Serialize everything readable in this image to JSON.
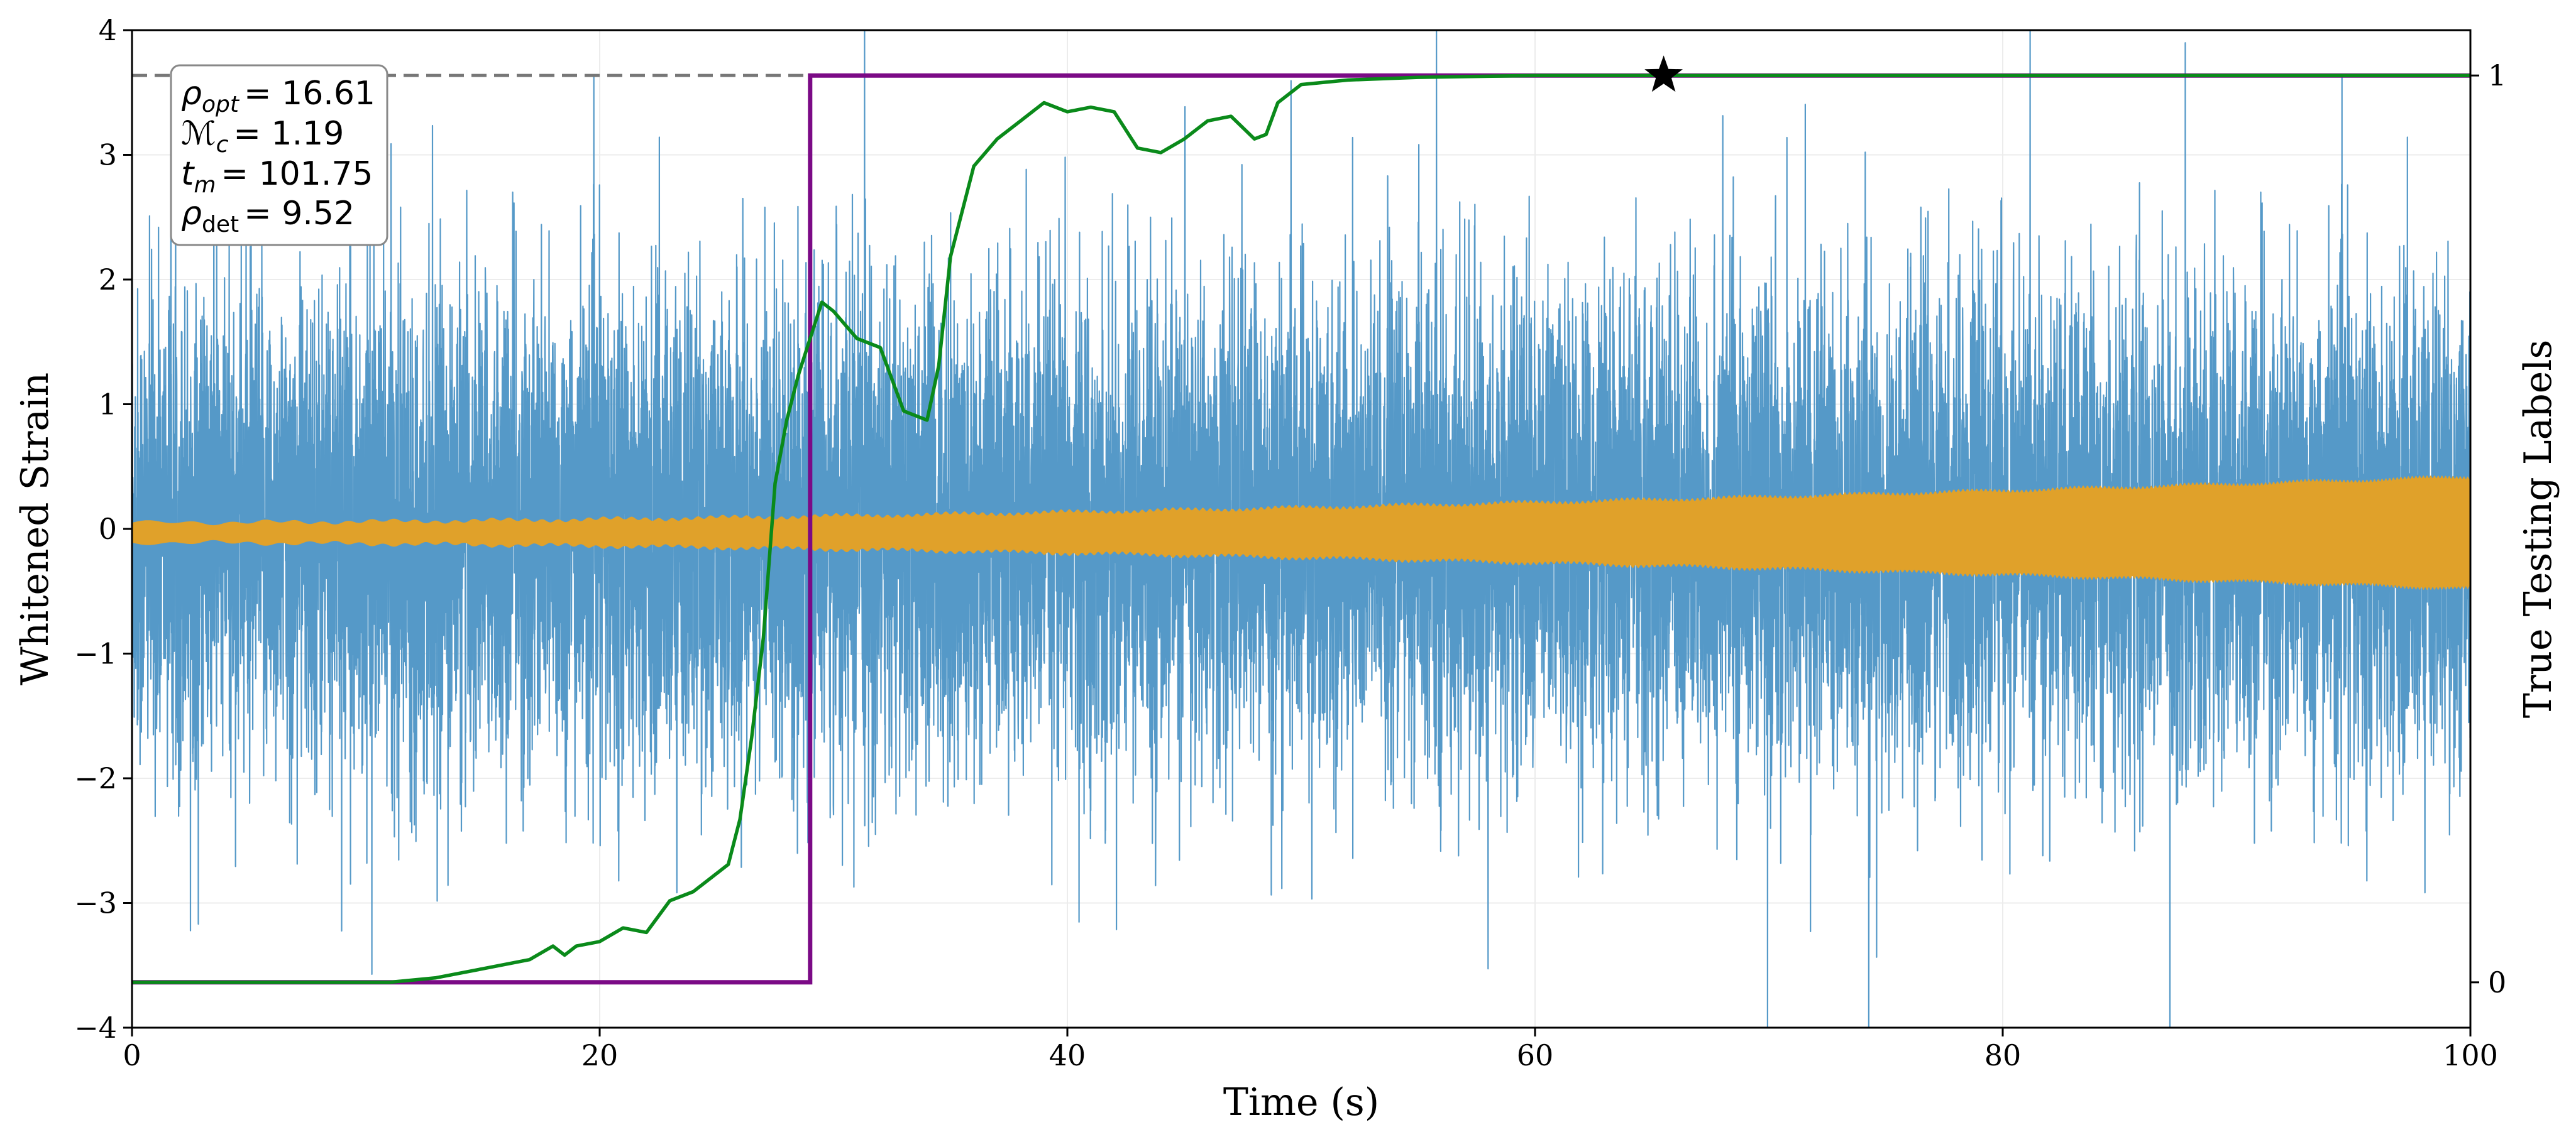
{
  "chart_data": {
    "type": "line",
    "xlabel": "Time (s)",
    "ylabel": "Whitened Strain",
    "y2label": "True Testing Labels",
    "xlim": [
      0,
      100
    ],
    "ylim": [
      -4,
      4
    ],
    "y2lim": [
      -0.05,
      1.05
    ],
    "xticks": [
      "0",
      "20",
      "40",
      "60",
      "80",
      "100"
    ],
    "yticks": [
      "−4",
      "−3",
      "−2",
      "−1",
      "0",
      "1",
      "2",
      "3",
      "4"
    ],
    "y2ticks": [
      "0",
      "1"
    ],
    "grid": true,
    "annotation": {
      "lines": [
        {
          "sym": "ρ",
          "sub": "opt",
          "sub_italic": true,
          "value": "= 16.61"
        },
        {
          "sym": "ℳ",
          "sub": "c",
          "sub_italic": true,
          "value": "= 1.19"
        },
        {
          "sym": "t",
          "sub": "m",
          "sub_italic": true,
          "value": "= 101.75"
        },
        {
          "sym": "ρ",
          "sub": "det",
          "sub_italic": false,
          "value": "= 9.52"
        }
      ],
      "placement": "top-left"
    },
    "marker": {
      "shape": "star",
      "x": 65.5,
      "y2": 1.0
    },
    "series": [
      {
        "kind": "noise",
        "color": "#5599c8",
        "axis": "left",
        "envelope_approx": 2.1,
        "spike_max": 4.0,
        "spike_min": -4.0
      },
      {
        "kind": "chirp",
        "color": "#e0a12a",
        "axis": "left",
        "amp_start": 0.08,
        "amp_end": 0.45,
        "offset": -0.03
      },
      {
        "kind": "step",
        "color": "#7b0a86",
        "axis": "right",
        "x": [
          0,
          29,
          29,
          100
        ],
        "y": [
          0,
          0,
          1,
          1
        ]
      },
      {
        "kind": "probability",
        "color": "#0a8a1a",
        "axis": "right",
        "x": [
          0,
          11,
          13,
          15,
          16,
          17,
          18,
          18.5,
          19,
          20,
          21,
          22,
          23,
          24,
          25,
          25.5,
          26,
          26.5,
          27,
          27.5,
          28,
          28.5,
          29,
          29.5,
          30,
          31,
          32,
          33,
          34,
          34.5,
          35,
          36,
          37,
          38,
          38.5,
          39,
          40,
          41,
          42,
          43,
          44,
          45,
          46,
          47,
          48,
          48.5,
          49,
          50,
          52,
          55,
          60,
          65,
          100
        ],
        "y": [
          0,
          0,
          0.005,
          0.015,
          0.02,
          0.025,
          0.04,
          0.03,
          0.04,
          0.045,
          0.06,
          0.055,
          0.09,
          0.1,
          0.12,
          0.13,
          0.18,
          0.27,
          0.38,
          0.55,
          0.62,
          0.67,
          0.71,
          0.75,
          0.74,
          0.71,
          0.7,
          0.63,
          0.62,
          0.68,
          0.8,
          0.9,
          0.93,
          0.95,
          0.96,
          0.97,
          0.96,
          0.965,
          0.96,
          0.92,
          0.915,
          0.93,
          0.95,
          0.955,
          0.93,
          0.935,
          0.97,
          0.99,
          0.995,
          0.998,
          1.0,
          1.0,
          1.0
        ]
      },
      {
        "kind": "hline",
        "color": "#777777",
        "axis": "right",
        "y": 1.0,
        "style": "dashed"
      }
    ]
  }
}
